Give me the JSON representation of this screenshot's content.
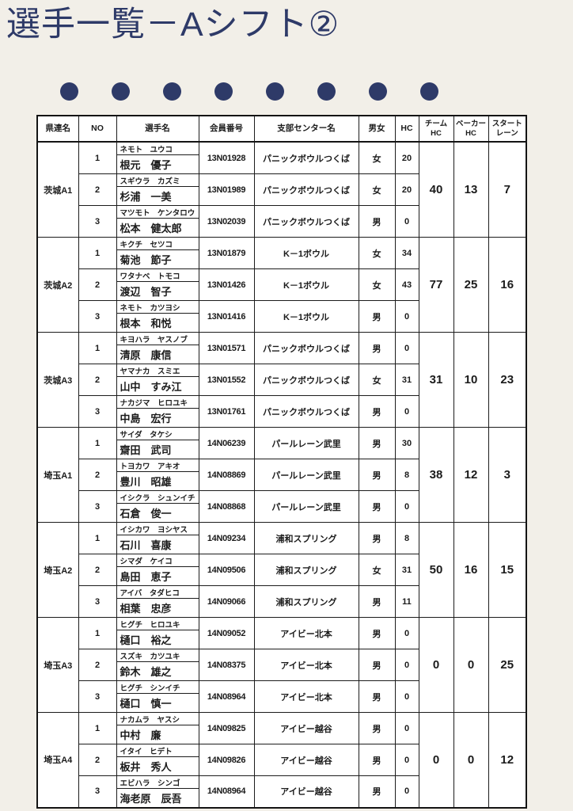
{
  "page": {
    "title": "選手一覧－Aシフト②",
    "background_color": "#f2efe8",
    "accent_color": "#2e3a68",
    "table_border_color": "#1c1c1c"
  },
  "decor": {
    "dot_count": 8,
    "dot_color": "#2e3a68"
  },
  "table": {
    "columns": [
      "県連名",
      "NO",
      "選手名",
      "会員番号",
      "支部センター名",
      "男女",
      "HC",
      "チーム\nHC",
      "ベーカー\nHC",
      "スタート\nレーン"
    ],
    "groups": [
      {
        "pref": "茨城А1",
        "team_hc": "40",
        "baker_hc": "13",
        "lane": "7",
        "players": [
          {
            "no": "1",
            "kana": "ネモト　ユウコ",
            "name": "根元　優子",
            "member": "13N01928",
            "center": "パニックボウルつくば",
            "gender": "女",
            "hc": "20"
          },
          {
            "no": "2",
            "kana": "スギウラ　カズミ",
            "name": "杉浦　一美",
            "member": "13N01989",
            "center": "パニックボウルつくば",
            "gender": "女",
            "hc": "20"
          },
          {
            "no": "3",
            "kana": "マツモト　ケンタロウ",
            "name": "松本　健太郎",
            "member": "13N02039",
            "center": "パニックボウルつくば",
            "gender": "男",
            "hc": "0"
          }
        ]
      },
      {
        "pref": "茨城А2",
        "team_hc": "77",
        "baker_hc": "25",
        "lane": "16",
        "players": [
          {
            "no": "1",
            "kana": "キクチ　セツコ",
            "name": "菊池　節子",
            "member": "13N01879",
            "center": "K－1ボウル",
            "gender": "女",
            "hc": "34"
          },
          {
            "no": "2",
            "kana": "ワタナベ　トモコ",
            "name": "渡辺　智子",
            "member": "13N01426",
            "center": "K－1ボウル",
            "gender": "女",
            "hc": "43"
          },
          {
            "no": "3",
            "kana": "ネモト　カツヨシ",
            "name": "根本　和悦",
            "member": "13N01416",
            "center": "K－1ボウル",
            "gender": "男",
            "hc": "0"
          }
        ]
      },
      {
        "pref": "茨城А3",
        "team_hc": "31",
        "baker_hc": "10",
        "lane": "23",
        "players": [
          {
            "no": "1",
            "kana": "キヨハラ　ヤスノブ",
            "name": "清原　康信",
            "member": "13N01571",
            "center": "パニックボウルつくば",
            "gender": "男",
            "hc": "0"
          },
          {
            "no": "2",
            "kana": "ヤマナカ　スミエ",
            "name": "山中　すみ江",
            "member": "13N01552",
            "center": "パニックボウルつくば",
            "gender": "女",
            "hc": "31"
          },
          {
            "no": "3",
            "kana": "ナカジマ　ヒロユキ",
            "name": "中島　宏行",
            "member": "13N01761",
            "center": "パニックボウルつくば",
            "gender": "男",
            "hc": "0"
          }
        ]
      },
      {
        "pref": "埼玉А1",
        "team_hc": "38",
        "baker_hc": "12",
        "lane": "3",
        "players": [
          {
            "no": "1",
            "kana": "サイダ　タケシ",
            "name": "齋田　武司",
            "member": "14N06239",
            "center": "パールレーン武里",
            "gender": "男",
            "hc": "30"
          },
          {
            "no": "2",
            "kana": "トヨカワ　アキオ",
            "name": "豊川　昭雄",
            "member": "14N08869",
            "center": "パールレーン武里",
            "gender": "男",
            "hc": "8"
          },
          {
            "no": "3",
            "kana": "イシクラ　シュンイチ",
            "name": "石倉　俊一",
            "member": "14N08868",
            "center": "パールレーン武里",
            "gender": "男",
            "hc": "0"
          }
        ]
      },
      {
        "pref": "埼玉А2",
        "team_hc": "50",
        "baker_hc": "16",
        "lane": "15",
        "players": [
          {
            "no": "1",
            "kana": "イシカワ　ヨシヤス",
            "name": "石川　喜康",
            "member": "14N09234",
            "center": "浦和スプリング",
            "gender": "男",
            "hc": "8"
          },
          {
            "no": "2",
            "kana": "シマダ　ケイコ",
            "name": "島田　恵子",
            "member": "14N09506",
            "center": "浦和スプリング",
            "gender": "女",
            "hc": "31"
          },
          {
            "no": "3",
            "kana": "アイバ　タダヒコ",
            "name": "相葉　忠彦",
            "member": "14N09066",
            "center": "浦和スプリング",
            "gender": "男",
            "hc": "11"
          }
        ]
      },
      {
        "pref": "埼玉А3",
        "team_hc": "0",
        "baker_hc": "0",
        "lane": "25",
        "players": [
          {
            "no": "1",
            "kana": "ヒグチ　ヒロユキ",
            "name": "樋口　裕之",
            "member": "14N09052",
            "center": "アイビー北本",
            "gender": "男",
            "hc": "0"
          },
          {
            "no": "2",
            "kana": "スズキ　カツユキ",
            "name": "鈴木　雄之",
            "member": "14N08375",
            "center": "アイビー北本",
            "gender": "男",
            "hc": "0"
          },
          {
            "no": "3",
            "kana": "ヒグチ　シンイチ",
            "name": "樋口　慎一",
            "member": "14N08964",
            "center": "アイビー北本",
            "gender": "男",
            "hc": "0"
          }
        ]
      },
      {
        "pref": "埼玉А4",
        "team_hc": "0",
        "baker_hc": "0",
        "lane": "12",
        "players": [
          {
            "no": "1",
            "kana": "ナカムラ　ヤスシ",
            "name": "中村　廉",
            "member": "14N09825",
            "center": "アイビー越谷",
            "gender": "男",
            "hc": "0"
          },
          {
            "no": "2",
            "kana": "イタイ　ヒデト",
            "name": "板井　秀人",
            "member": "14N09826",
            "center": "アイビー越谷",
            "gender": "男",
            "hc": "0"
          },
          {
            "no": "3",
            "kana": "エビハラ　シンゴ",
            "name": "海老原　辰吾",
            "member": "14N08964",
            "center": "アイビー越谷",
            "gender": "男",
            "hc": "0"
          }
        ]
      }
    ]
  }
}
